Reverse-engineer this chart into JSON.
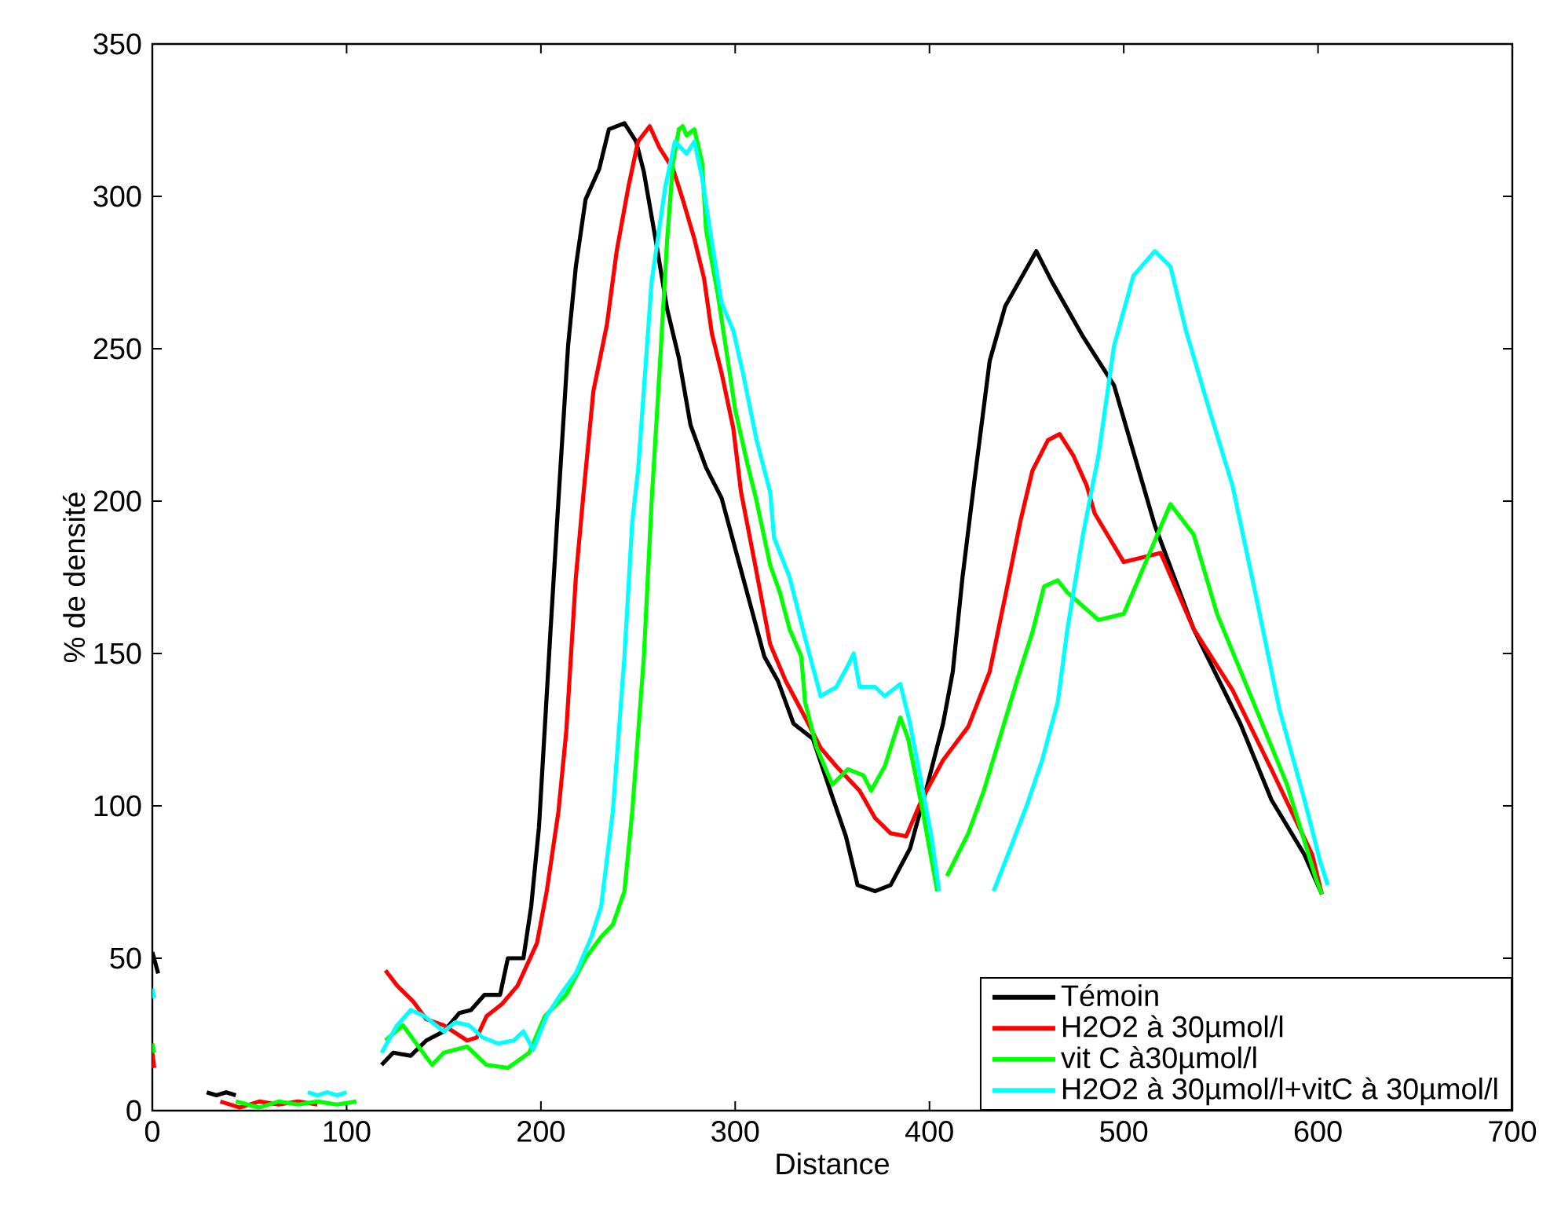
{
  "chart_data": {
    "type": "line",
    "xlabel": "Distance",
    "ylabel": "% de densité",
    "xlim": [
      0,
      700
    ],
    "ylim": [
      0,
      350
    ],
    "xticks": [
      0,
      100,
      200,
      300,
      400,
      500,
      600,
      700
    ],
    "yticks": [
      0,
      50,
      100,
      150,
      200,
      250,
      300,
      350
    ],
    "grid": false,
    "legend": "bottom right",
    "marker": "none",
    "line_style": "solid",
    "series": [
      {
        "name": "Témoin",
        "color": "#000000",
        "x": [
          0,
          3,
          15,
          28,
          33,
          38,
          43,
          80,
          118,
          124,
          133,
          141,
          150,
          158,
          164,
          171,
          179,
          183,
          191,
          195,
          199,
          205,
          209,
          214,
          218,
          223,
          230,
          235,
          243,
          249,
          253,
          259,
          265,
          271,
          277,
          285,
          293,
          304,
          315,
          322,
          330,
          340,
          350,
          357,
          363,
          372,
          380,
          390,
          399,
          407,
          412,
          417,
          423,
          431,
          439,
          455,
          463,
          479,
          495,
          516,
          536,
          560,
          576,
          593,
          602
        ],
        "values": [
          52,
          45,
          null,
          6,
          5,
          6,
          5,
          null,
          15,
          19,
          18,
          23,
          26,
          32,
          33,
          38,
          38,
          50,
          50,
          67,
          93,
          158,
          200,
          251,
          277,
          299,
          309,
          322,
          324,
          318,
          308,
          286,
          263,
          247,
          225,
          211,
          201,
          175,
          149,
          141,
          127,
          122,
          103,
          90,
          74,
          72,
          74,
          86,
          107,
          127,
          144,
          175,
          206,
          246,
          264,
          282,
          272,
          254,
          238,
          192,
          158,
          127,
          102,
          84,
          71
        ]
      },
      {
        "name": "H2O2 à 30µmol/l",
        "color": "#ff0000",
        "x": [
          0,
          1,
          15,
          35,
          45,
          55,
          65,
          75,
          85,
          100,
          120,
          126,
          134,
          141,
          150,
          162,
          167,
          172,
          180,
          188,
          198,
          203,
          209,
          213,
          218,
          222,
          227,
          234,
          239,
          245,
          250,
          256,
          261,
          268,
          273,
          279,
          284,
          288,
          293,
          299,
          303,
          310,
          318,
          326,
          336,
          344,
          352,
          364,
          372,
          380,
          388,
          396,
          407,
          420,
          431,
          441,
          447,
          453,
          461,
          467,
          474,
          481,
          485,
          500,
          519,
          536,
          556,
          576,
          597,
          602
        ],
        "values": [
          19,
          14,
          null,
          3,
          1,
          3,
          2,
          3,
          2,
          null,
          46,
          41,
          36,
          30,
          28,
          23,
          24,
          31,
          35,
          41,
          55,
          72,
          98,
          124,
          175,
          203,
          236,
          258,
          282,
          303,
          318,
          323,
          316,
          309,
          299,
          286,
          273,
          255,
          242,
          224,
          203,
          180,
          153,
          141,
          129,
          119,
          113,
          105,
          96,
          91,
          90,
          102,
          115,
          126,
          144,
          175,
          194,
          210,
          220,
          222,
          215,
          205,
          196,
          180,
          183,
          158,
          138,
          112,
          84,
          71
        ]
      },
      {
        "name": "vit C à30µmol/l",
        "color": "#00ff00",
        "x": [
          0,
          1,
          20,
          43,
          55,
          65,
          75,
          85,
          95,
          105,
          112,
          120,
          129,
          137,
          144,
          150,
          162,
          172,
          183,
          194,
          202,
          213,
          223,
          231,
          237,
          243,
          247,
          253,
          257,
          261,
          265,
          268,
          271,
          273,
          275,
          279,
          283,
          285,
          291,
          296,
          300,
          306,
          311,
          318,
          323,
          328,
          334,
          336,
          342,
          350,
          358,
          366,
          370,
          377,
          385,
          389,
          396,
          404,
          406,
          409,
          420,
          428,
          437,
          445,
          453,
          459,
          466,
          471,
          487,
          500,
          512,
          524,
          536,
          548,
          568,
          584,
          599,
          602
        ],
        "values": [
          22,
          19,
          null,
          3,
          1,
          3,
          2,
          3,
          2,
          3,
          null,
          23,
          28,
          21,
          15,
          19,
          21,
          15,
          14,
          19,
          31,
          38,
          50,
          57,
          61,
          72,
          98,
          149,
          200,
          242,
          286,
          311,
          322,
          323,
          320,
          322,
          311,
          289,
          268,
          247,
          230,
          213,
          200,
          179,
          170,
          158,
          149,
          134,
          119,
          107,
          112,
          110,
          105,
          113,
          129,
          122,
          100,
          72,
          null,
          77,
          91,
          105,
          124,
          141,
          157,
          172,
          174,
          170,
          161,
          163,
          181,
          199,
          189,
          163,
          132,
          107,
          76,
          71
        ]
      },
      {
        "name": "H2O2 à 30µmol/l+vitC à 30µmol/l",
        "color": "#00ffff",
        "x": [
          0,
          1,
          40,
          80,
          85,
          90,
          95,
          100,
          110,
          118,
          126,
          133,
          140,
          150,
          156,
          163,
          170,
          178,
          186,
          191,
          196,
          203,
          210,
          218,
          226,
          231,
          237,
          243,
          247,
          250,
          257,
          264,
          269,
          275,
          279,
          283,
          287,
          291,
          293,
          299,
          304,
          311,
          318,
          320,
          328,
          336,
          344,
          352,
          358,
          361,
          364,
          372,
          377,
          385,
          390,
          396,
          401,
          405,
          420,
          433,
          441,
          450,
          458,
          466,
          471,
          479,
          487,
          495,
          505,
          516,
          524,
          532,
          544,
          556,
          568,
          580,
          593,
          601,
          605
        ],
        "values": [
          40,
          37,
          null,
          6,
          5,
          6,
          5,
          6,
          null,
          19,
          28,
          33,
          31,
          26,
          29,
          28,
          24,
          22,
          23,
          26,
          20,
          31,
          38,
          45,
          57,
          67,
          98,
          149,
          193,
          210,
          272,
          303,
          318,
          314,
          318,
          306,
          289,
          273,
          265,
          256,
          242,
          220,
          203,
          188,
          175,
          155,
          136,
          139,
          146,
          150,
          139,
          139,
          136,
          140,
          127,
          107,
          90,
          72,
          null,
          72,
          85,
          100,
          115,
          134,
          158,
          189,
          215,
          251,
          274,
          282,
          277,
          256,
          230,
          205,
          169,
          132,
          102,
          82,
          74
        ]
      }
    ]
  }
}
